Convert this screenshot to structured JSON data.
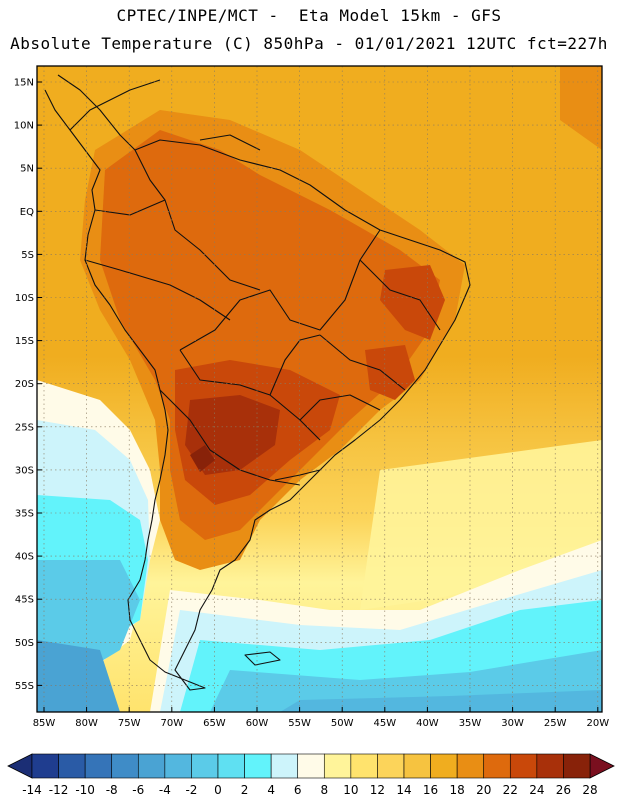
{
  "header": {
    "line1": "CPTEC/INPE/MCT -  Eta Model 15km - GFS",
    "line2": "Absolute Temperature (C) 850hPa - 01/01/2021 12UTC fct=227h"
  },
  "axes": {
    "lat_labels": [
      "15N",
      "10N",
      "5N",
      "EQ",
      "5S",
      "10S",
      "15S",
      "20S",
      "25S",
      "30S",
      "35S",
      "40S",
      "45S",
      "50S",
      "55S"
    ],
    "lon_labels": [
      "85W",
      "80W",
      "75W",
      "70W",
      "65W",
      "60W",
      "55W",
      "50W",
      "45W",
      "40W",
      "35W",
      "30W",
      "25W",
      "20W"
    ]
  },
  "colorbar": {
    "labels": [
      "-14",
      "-12",
      "-10",
      "-8",
      "-6",
      "-4",
      "-2",
      "0",
      "2",
      "4",
      "6",
      "8",
      "10",
      "12",
      "14",
      "16",
      "18",
      "20",
      "22",
      "24",
      "26",
      "28"
    ],
    "colors": [
      "#1f3d8f",
      "#2a5ba6",
      "#3574b8",
      "#3f8cc7",
      "#4aa3d3",
      "#53b7df",
      "#5bcbe8",
      "#5fe0f2",
      "#62f3fb",
      "#cdf4fb",
      "#fffbe8",
      "#fff49a",
      "#ffe36d",
      "#fcd45a",
      "#f6c340",
      "#f0ad1f",
      "#e98e14",
      "#de6a0d",
      "#c9480a",
      "#a8300a",
      "#882209"
    ],
    "under_color": "#1b2e75",
    "over_color": "#7a0f1f"
  }
}
